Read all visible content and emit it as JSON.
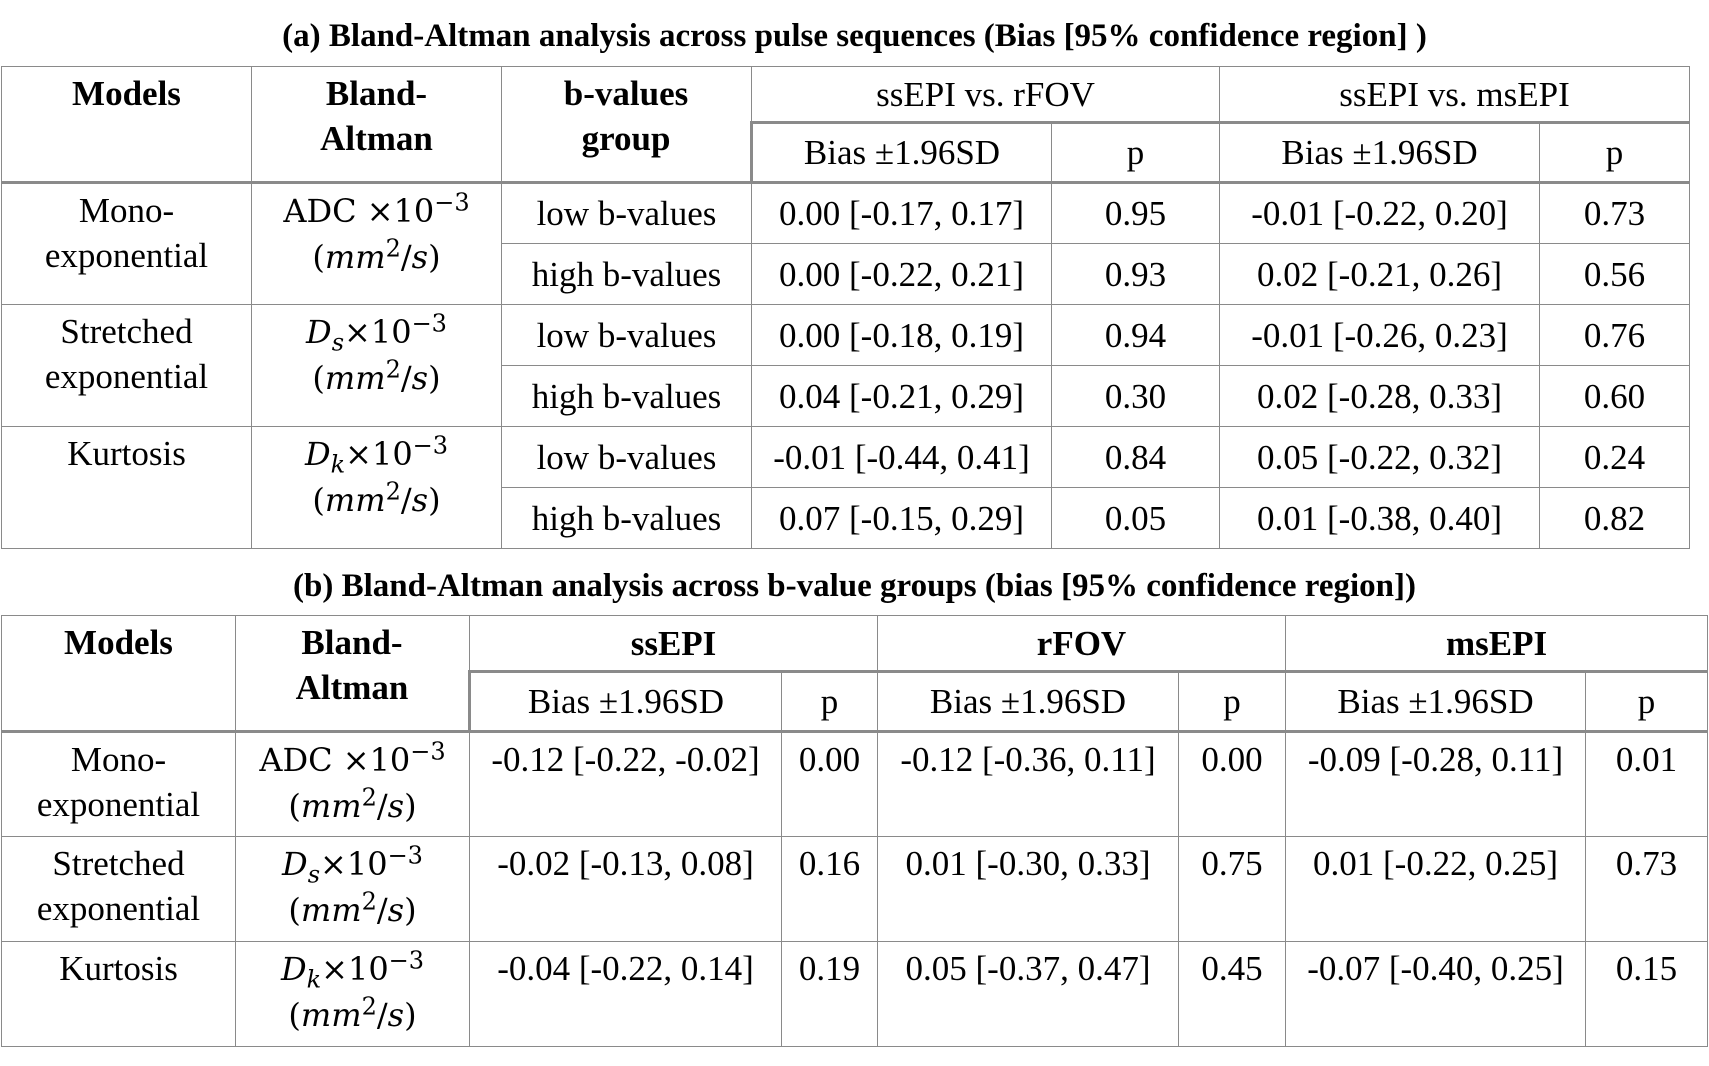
{
  "table_a": {
    "caption": "(a) Bland-Altman analysis across pulse sequences   (Bias [95% confidence region] )",
    "headers": {
      "models": "Models",
      "bland_altman_1": "Bland-",
      "bland_altman_2": "Altman",
      "bvalues_1": "b-values",
      "bvalues_2": "group",
      "group1": "ssEPI vs. rFOV",
      "group2": "ssEPI vs. msEPI",
      "bias": "Bias ±1.96SD",
      "p": "p"
    },
    "models": [
      {
        "name_1": "Mono-",
        "name_2": "exponential",
        "ba_1": "ADC ×10−3",
        "ba_2": "(mm2/s)",
        "rows": [
          {
            "group": "low b-values",
            "bias1": "0.00 [-0.17, 0.17]",
            "p1": "0.95",
            "bias2": "-0.01 [-0.22, 0.20]",
            "p2": "0.73"
          },
          {
            "group": "high b-values",
            "bias1": "0.00 [-0.22, 0.21]",
            "p1": "0.93",
            "bias2": "0.02 [-0.21, 0.26]",
            "p2": "0.56"
          }
        ]
      },
      {
        "name_1": "Stretched",
        "name_2": "exponential",
        "ba_1": "Ds×10−3",
        "ba_2": "(mm2/s)",
        "rows": [
          {
            "group": "low b-values",
            "bias1": "0.00 [-0.18, 0.19]",
            "p1": "0.94",
            "bias2": "-0.01 [-0.26, 0.23]",
            "p2": "0.76"
          },
          {
            "group": "high b-values",
            "bias1": "0.04 [-0.21, 0.29]",
            "p1": "0.30",
            "bias2": "0.02 [-0.28, 0.33]",
            "p2": "0.60"
          }
        ]
      },
      {
        "name_1": "Kurtosis",
        "name_2": "",
        "ba_1": "Dk×10−3",
        "ba_2": "(mm2/s)",
        "rows": [
          {
            "group": "low b-values",
            "bias1": "-0.01 [-0.44, 0.41]",
            "p1": "0.84",
            "bias2": "0.05 [-0.22, 0.32]",
            "p2": "0.24"
          },
          {
            "group": "high b-values",
            "bias1": "0.07 [-0.15, 0.29]",
            "p1": "0.05",
            "bias2": "0.01 [-0.38, 0.40]",
            "p2": "0.82"
          }
        ]
      }
    ]
  },
  "table_b": {
    "caption": "(b) Bland-Altman analysis across b-value groups   (bias [95% confidence region])",
    "headers": {
      "models": "Models",
      "bland_altman_1": "Bland-",
      "bland_altman_2": "Altman",
      "seq1": "ssEPI",
      "seq2": "rFOV",
      "seq3": "msEPI",
      "bias": "Bias ±1.96SD",
      "p": "p"
    },
    "rows": [
      {
        "name_1": "Mono-",
        "name_2": "exponential",
        "ba_1": "ADC ×10−3",
        "ba_2": "(mm2/s)",
        "b1": "-0.12 [-0.22, -0.02]",
        "p1": "0.00",
        "b2": "-0.12 [-0.36, 0.11]",
        "p2": "0.00",
        "b3": "-0.09 [-0.28, 0.11]",
        "p3": "0.01"
      },
      {
        "name_1": "Stretched",
        "name_2": "exponential",
        "ba_1": "Ds×10−3",
        "ba_2": "(mm2/s)",
        "b1": "-0.02 [-0.13, 0.08]",
        "p1": "0.16",
        "b2": "0.01 [-0.30, 0.33]",
        "p2": "0.75",
        "b3": "0.01 [-0.22, 0.25]",
        "p3": "0.73"
      },
      {
        "name_1": "Kurtosis",
        "name_2": "",
        "ba_1": "Dk×10−3",
        "ba_2": "(mm2/s)",
        "b1": "-0.04 [-0.22, 0.14]",
        "p1": "0.19",
        "b2": "0.05 [-0.37, 0.47]",
        "p2": "0.45",
        "b3": "-0.07 [-0.40, 0.25]",
        "p3": "0.15"
      }
    ]
  }
}
